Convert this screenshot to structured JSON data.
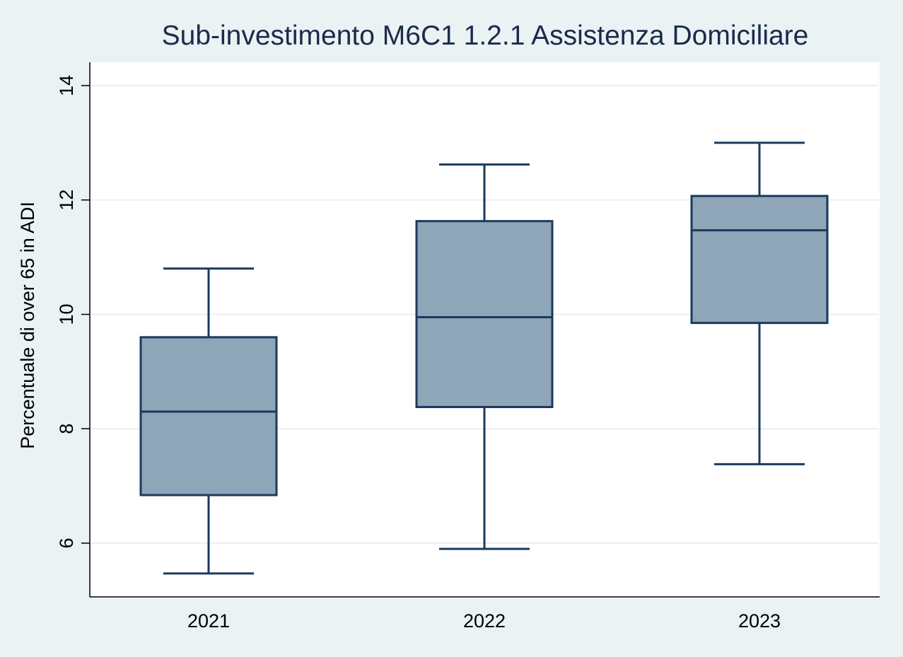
{
  "chart_data": {
    "type": "box",
    "title": "Sub-investimento M6C1 1.2.1 Assistenza Domiciliare",
    "ylabel": "Percentuale di over 65 in ADI",
    "xlabel": "",
    "ylim": [
      5.1,
      14.4
    ],
    "yticks": [
      6,
      8,
      10,
      12,
      14
    ],
    "grid": true,
    "categories": [
      "2021",
      "2022",
      "2023"
    ],
    "boxes": [
      {
        "category": "2021",
        "min": 5.47,
        "q1": 6.84,
        "median": 8.3,
        "q3": 9.6,
        "max": 10.8
      },
      {
        "category": "2022",
        "min": 5.9,
        "q1": 8.38,
        "median": 9.95,
        "q3": 11.63,
        "max": 12.62
      },
      {
        "category": "2023",
        "min": 7.38,
        "q1": 9.85,
        "median": 11.47,
        "q3": 12.07,
        "max": 13.0
      }
    ],
    "colors": {
      "box_fill": "#8fa5b8",
      "box_stroke": "#1a3a5c",
      "background": "#eaf2f3",
      "plot_bg": "#ffffff"
    }
  }
}
